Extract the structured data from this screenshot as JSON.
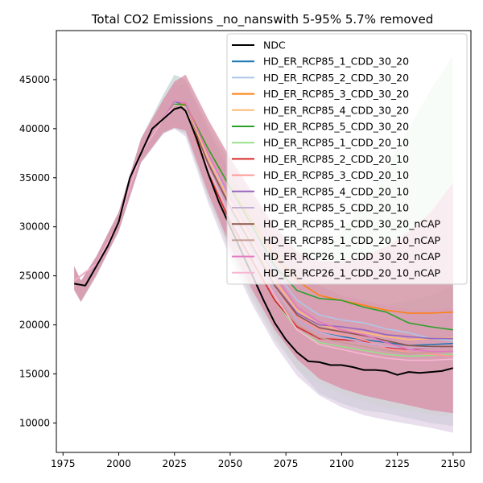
{
  "chart_data": {
    "type": "line",
    "title": "Total CO2 Emissions _no_nanswith 5-95% 5.7% removed",
    "xlabel": "",
    "ylabel": "",
    "xlim": [
      1972,
      2158
    ],
    "ylim": [
      7000,
      50000
    ],
    "xticks": [
      1975,
      2000,
      2025,
      2050,
      2075,
      2100,
      2125,
      2150
    ],
    "yticks": [
      10000,
      15000,
      20000,
      25000,
      30000,
      35000,
      40000,
      45000
    ],
    "legend_position": "upper right",
    "grid": false,
    "band_colors": [
      "#b8c9cc",
      "#c7e3c1",
      "#d8c8e0",
      "#d98ea7"
    ],
    "series": [
      {
        "name": "NDC",
        "color": "#000000",
        "x": [
          1980,
          1985,
          1990,
          1995,
          2000,
          2005,
          2010,
          2015,
          2020,
          2025,
          2028,
          2030,
          2035,
          2040,
          2045,
          2050,
          2055,
          2060,
          2065,
          2070,
          2075,
          2080,
          2085,
          2090,
          2095,
          2100,
          2105,
          2110,
          2115,
          2120,
          2125,
          2130,
          2135,
          2140,
          2145,
          2150
        ],
        "y": [
          24200,
          24000,
          26000,
          28000,
          30500,
          35000,
          37500,
          40000,
          41000,
          42000,
          42200,
          41800,
          39000,
          35500,
          32500,
          30000,
          27500,
          25000,
          22500,
          20200,
          18500,
          17200,
          16300,
          16200,
          15900,
          15900,
          15700,
          15400,
          15400,
          15300,
          14900,
          15200,
          15100,
          15200,
          15300,
          15600
        ]
      },
      {
        "name": "HD_ER_RCP85_1_CDD_30_20",
        "color": "#1f77b4",
        "x": [
          1980,
          1990,
          2000,
          2010,
          2020,
          2025,
          2030,
          2040,
          2050,
          2060,
          2070,
          2080,
          2090,
          2100,
          2110,
          2120,
          2130,
          2140,
          2150
        ],
        "y": [
          24500,
          26200,
          30500,
          37500,
          41000,
          42800,
          42300,
          36000,
          31500,
          27500,
          23500,
          20500,
          19200,
          18800,
          18500,
          18200,
          17900,
          18000,
          18100
        ]
      },
      {
        "name": "HD_ER_RCP85_2_CDD_30_20",
        "color": "#aec7e8",
        "x": [
          1980,
          1990,
          2000,
          2010,
          2020,
          2025,
          2030,
          2040,
          2050,
          2060,
          2070,
          2080,
          2090,
          2100,
          2110,
          2120,
          2130,
          2140,
          2150
        ],
        "y": [
          24500,
          26200,
          30500,
          37500,
          41000,
          42600,
          42300,
          37000,
          33000,
          29000,
          25500,
          22500,
          21000,
          20500,
          20200,
          19600,
          19200,
          18600,
          18400
        ]
      },
      {
        "name": "HD_ER_RCP85_3_CDD_30_20",
        "color": "#ff7f0e",
        "x": [
          1980,
          1990,
          2000,
          2010,
          2020,
          2025,
          2030,
          2040,
          2050,
          2060,
          2070,
          2080,
          2090,
          2100,
          2110,
          2120,
          2130,
          2140,
          2150
        ],
        "y": [
          24500,
          26200,
          30500,
          37500,
          41000,
          42500,
          42500,
          38000,
          34000,
          30500,
          27000,
          24500,
          23000,
          22500,
          22000,
          21500,
          21200,
          21200,
          21300
        ]
      },
      {
        "name": "HD_ER_RCP85_4_CDD_30_20",
        "color": "#ffbb78",
        "x": [
          1980,
          1990,
          2000,
          2010,
          2020,
          2025,
          2030,
          2040,
          2050,
          2060,
          2070,
          2080,
          2090,
          2100,
          2110,
          2120,
          2130,
          2140,
          2150
        ],
        "y": [
          24500,
          26200,
          30500,
          37500,
          41000,
          42500,
          42300,
          37000,
          32500,
          28500,
          24500,
          21500,
          20000,
          19500,
          19200,
          18800,
          18500,
          18600,
          18700
        ]
      },
      {
        "name": "HD_ER_RCP85_5_CDD_30_20",
        "color": "#2ca02c",
        "x": [
          1980,
          1990,
          2000,
          2010,
          2020,
          2025,
          2030,
          2040,
          2050,
          2060,
          2070,
          2080,
          2090,
          2100,
          2110,
          2120,
          2130,
          2140,
          2150
        ],
        "y": [
          24500,
          26200,
          30500,
          37500,
          41000,
          42500,
          42400,
          38000,
          34000,
          30000,
          26000,
          23500,
          22700,
          22500,
          21800,
          21300,
          20200,
          19800,
          19500
        ]
      },
      {
        "name": "HD_ER_RCP85_1_CDD_20_10",
        "color": "#98df8a",
        "x": [
          1980,
          1990,
          2000,
          2010,
          2020,
          2025,
          2030,
          2040,
          2050,
          2060,
          2070,
          2080,
          2090,
          2100,
          2110,
          2120,
          2130,
          2140,
          2150
        ],
        "y": [
          24500,
          26200,
          30500,
          37500,
          41000,
          42300,
          42000,
          35500,
          30500,
          26500,
          22500,
          19500,
          18200,
          17800,
          17400,
          17000,
          16800,
          16900,
          17000
        ]
      },
      {
        "name": "HD_ER_RCP85_2_CDD_20_10",
        "color": "#d62728",
        "x": [
          1980,
          1990,
          2000,
          2010,
          2020,
          2025,
          2030,
          2040,
          2050,
          2060,
          2070,
          2080,
          2090,
          2100,
          2110,
          2120,
          2130,
          2140,
          2150
        ],
        "y": [
          24500,
          26200,
          30500,
          37500,
          41000,
          42300,
          42000,
          35500,
          30500,
          26500,
          22500,
          19800,
          18600,
          18500,
          18300,
          17700,
          17500,
          17700,
          17800
        ]
      },
      {
        "name": "HD_ER_RCP85_3_CDD_20_10",
        "color": "#ff9896",
        "x": [
          1980,
          1990,
          2000,
          2010,
          2020,
          2025,
          2030,
          2040,
          2050,
          2060,
          2070,
          2080,
          2090,
          2100,
          2110,
          2120,
          2130,
          2140,
          2150
        ],
        "y": [
          24500,
          26200,
          30500,
          37500,
          41000,
          42300,
          42000,
          36000,
          31500,
          27500,
          23500,
          20800,
          19500,
          19000,
          18500,
          17600,
          17200,
          17000,
          16800
        ]
      },
      {
        "name": "HD_ER_RCP85_4_CDD_20_10",
        "color": "#9467bd",
        "x": [
          1980,
          1990,
          2000,
          2010,
          2020,
          2025,
          2030,
          2040,
          2050,
          2060,
          2070,
          2080,
          2090,
          2100,
          2110,
          2120,
          2130,
          2140,
          2150
        ],
        "y": [
          24500,
          26200,
          30500,
          37500,
          41000,
          42300,
          42000,
          36500,
          32000,
          28000,
          24000,
          21200,
          20000,
          19800,
          19500,
          19000,
          18800,
          18600,
          18600
        ]
      },
      {
        "name": "HD_ER_RCP85_5_CDD_20_10",
        "color": "#c5b0d5",
        "x": [
          1980,
          1990,
          2000,
          2010,
          2020,
          2025,
          2030,
          2040,
          2050,
          2060,
          2070,
          2080,
          2090,
          2100,
          2110,
          2120,
          2130,
          2140,
          2150
        ],
        "y": [
          24500,
          26200,
          30500,
          37500,
          41000,
          42300,
          42000,
          36000,
          31500,
          27500,
          23500,
          20500,
          19200,
          18700,
          18200,
          17800,
          17600,
          17700,
          17800
        ]
      },
      {
        "name": "HD_ER_RCP85_1_CDD_30_20_nCAP",
        "color": "#8c564b",
        "x": [
          1980,
          1990,
          2000,
          2010,
          2020,
          2025,
          2030,
          2040,
          2050,
          2060,
          2070,
          2080,
          2090,
          2100,
          2110,
          2120,
          2130,
          2140,
          2150
        ],
        "y": [
          24500,
          26200,
          30500,
          37500,
          41000,
          42400,
          42200,
          36500,
          32000,
          28000,
          24000,
          21000,
          19700,
          19300,
          18900,
          18400,
          17900,
          17800,
          17800
        ]
      },
      {
        "name": "HD_ER_RCP85_1_CDD_20_10_nCAP",
        "color": "#c49c94",
        "x": [
          1980,
          1990,
          2000,
          2010,
          2020,
          2025,
          2030,
          2040,
          2050,
          2060,
          2070,
          2080,
          2090,
          2100,
          2110,
          2120,
          2130,
          2140,
          2150
        ],
        "y": [
          24500,
          26200,
          30500,
          37500,
          41000,
          42300,
          42000,
          35800,
          31000,
          27000,
          23000,
          20000,
          18700,
          18200,
          17800,
          17400,
          17100,
          17200,
          17300
        ]
      },
      {
        "name": "HD_ER_RCP26_1_CDD_30_20_nCAP",
        "color": "#e377c2",
        "x": [
          1980,
          1990,
          2000,
          2010,
          2020,
          2025,
          2030,
          2040,
          2050,
          2060,
          2070,
          2080,
          2090,
          2100,
          2110,
          2120,
          2130,
          2140,
          2150
        ],
        "y": [
          24500,
          26200,
          30500,
          37500,
          41000,
          42800,
          42600,
          37500,
          33000,
          29000,
          25000,
          21800,
          20300,
          19500,
          19000,
          18200,
          17500,
          17300,
          17300
        ]
      },
      {
        "name": "HD_ER_RCP26_1_CDD_20_10_nCAP",
        "color": "#f7b6d2",
        "x": [
          1980,
          1990,
          2000,
          2010,
          2020,
          2025,
          2030,
          2040,
          2050,
          2060,
          2070,
          2080,
          2090,
          2100,
          2110,
          2120,
          2130,
          2140,
          2150
        ],
        "y": [
          24500,
          26200,
          30500,
          37500,
          41000,
          42400,
          42200,
          36000,
          31000,
          27000,
          23000,
          19500,
          18000,
          17500,
          17000,
          16600,
          16400,
          16400,
          16500
        ]
      }
    ],
    "bands": [
      {
        "color_index": 0,
        "x": [
          1980,
          1983,
          1990,
          2000,
          2010,
          2020,
          2025,
          2030,
          2040,
          2050,
          2060,
          2070,
          2080,
          2090,
          2100,
          2110,
          2120,
          2130,
          2140,
          2150
        ],
        "upper": [
          26000,
          24500,
          27000,
          31500,
          39000,
          43500,
          45500,
          45000,
          40000,
          35500,
          32000,
          28500,
          26000,
          24000,
          23000,
          22500,
          22000,
          22500,
          23000,
          24000
        ],
        "lower": [
          23500,
          22300,
          25000,
          29500,
          36500,
          39500,
          40000,
          39500,
          33000,
          27500,
          23000,
          19000,
          15500,
          13000,
          12000,
          11300,
          11000,
          10500,
          10000,
          9700
        ]
      },
      {
        "color_index": 1,
        "x": [
          1980,
          1983,
          1990,
          2000,
          2010,
          2020,
          2025,
          2030,
          2040,
          2050,
          2060,
          2070,
          2080,
          2090,
          2100,
          2110,
          2120,
          2130,
          2140,
          2150
        ],
        "upper": [
          26000,
          24500,
          27000,
          31500,
          39000,
          43000,
          44500,
          45000,
          40500,
          36500,
          33000,
          30000,
          28000,
          27500,
          29500,
          32500,
          36000,
          40000,
          44000,
          47500
        ],
        "lower": [
          23600,
          22400,
          25100,
          29600,
          36600,
          39600,
          40200,
          39500,
          33000,
          27500,
          22500,
          18500,
          15500,
          14000,
          13000,
          12200,
          11600,
          11200,
          10900,
          10700
        ]
      },
      {
        "color_index": 2,
        "x": [
          1980,
          1983,
          1990,
          2000,
          2010,
          2020,
          2025,
          2030,
          2040,
          2050,
          2060,
          2070,
          2080,
          2090,
          2100,
          2110,
          2120,
          2130,
          2140,
          2150
        ],
        "upper": [
          26000,
          24500,
          27000,
          31500,
          39000,
          43000,
          44500,
          44500,
          40000,
          35500,
          31500,
          28000,
          25500,
          24000,
          23000,
          22500,
          22000,
          21500,
          21500,
          21800
        ],
        "lower": [
          23500,
          22300,
          25000,
          29500,
          36500,
          39500,
          40000,
          39200,
          32500,
          26800,
          22000,
          18000,
          14800,
          12800,
          11600,
          10800,
          10300,
          9900,
          9500,
          9000
        ]
      },
      {
        "color_index": 3,
        "x": [
          1980,
          1983,
          1990,
          2000,
          2010,
          2020,
          2025,
          2030,
          2040,
          2050,
          2060,
          2070,
          2080,
          2090,
          2100,
          2110,
          2120,
          2130,
          2140,
          2150
        ],
        "upper": [
          26000,
          24500,
          27000,
          31500,
          39000,
          43000,
          44800,
          45500,
          41000,
          37000,
          33500,
          30000,
          27500,
          26500,
          26500,
          27000,
          28000,
          29500,
          31500,
          34500
        ],
        "lower": [
          23600,
          22400,
          25100,
          29600,
          36600,
          39600,
          40100,
          39800,
          33500,
          28000,
          23500,
          19500,
          16500,
          14500,
          13500,
          12800,
          12300,
          11800,
          11300,
          11000
        ]
      }
    ]
  }
}
